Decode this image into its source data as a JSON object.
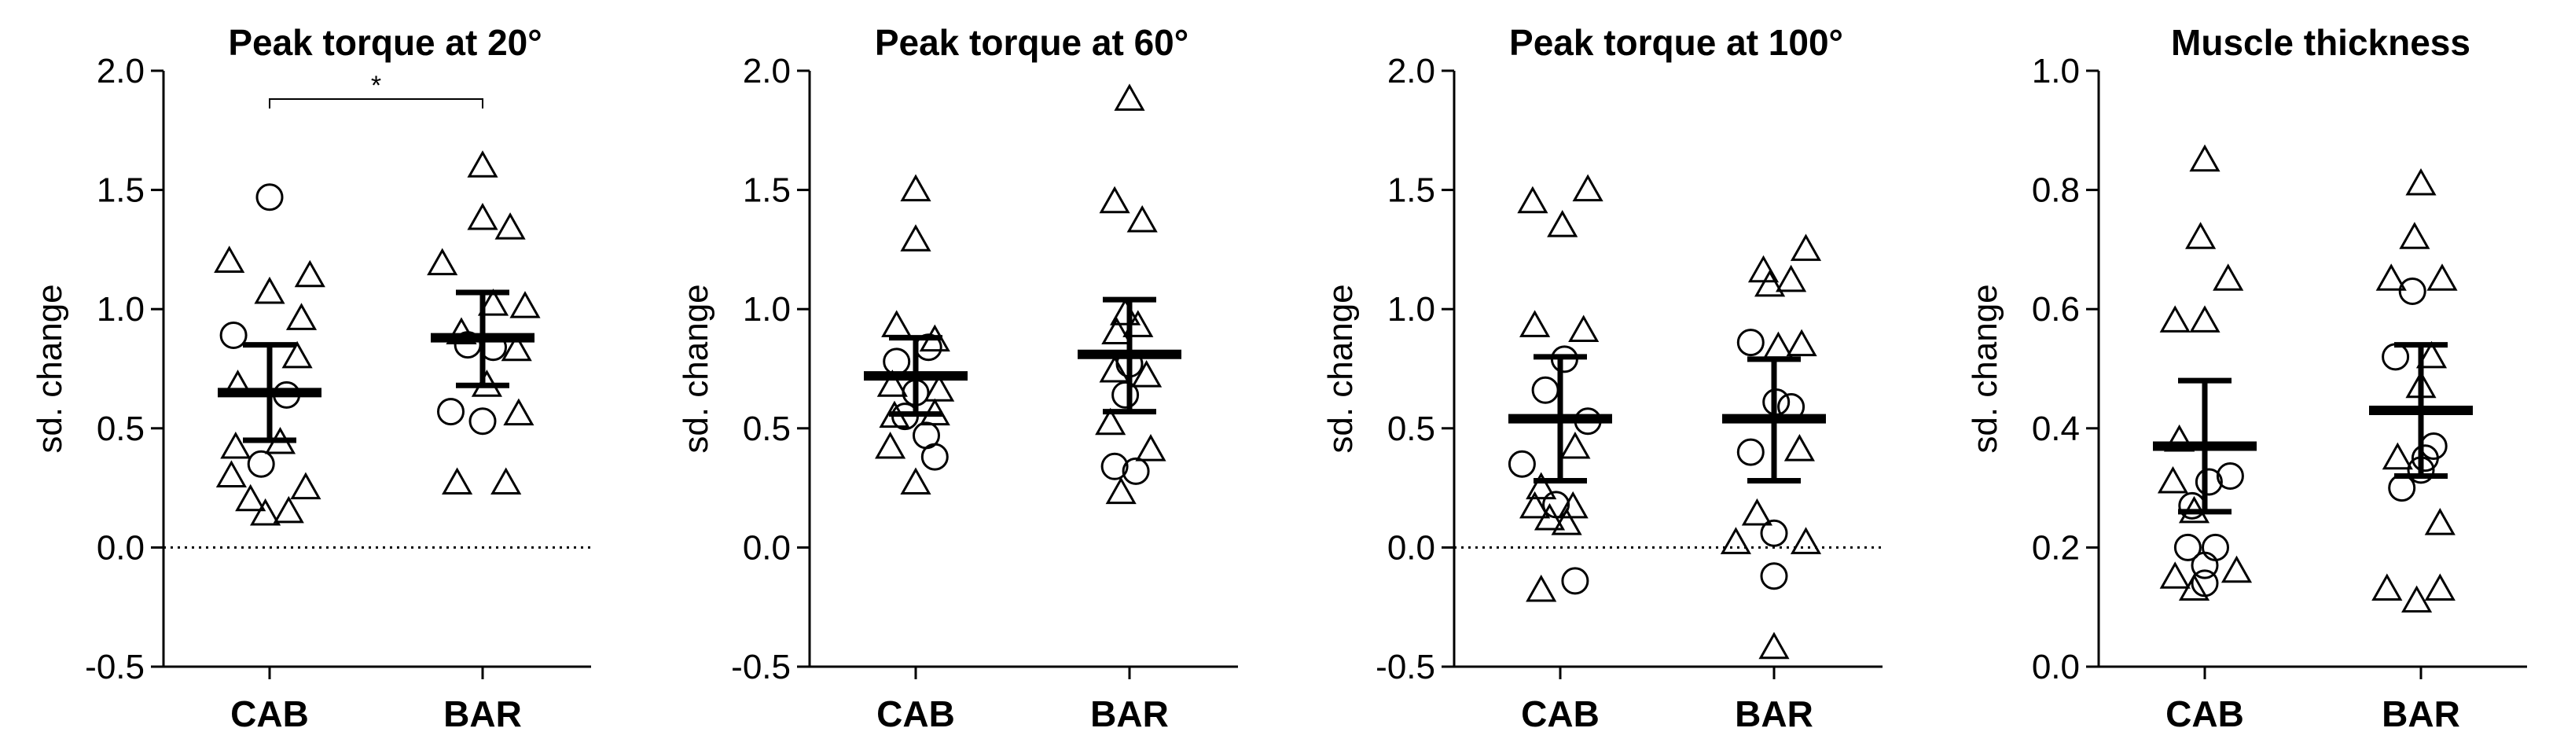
{
  "chart_data": [
    {
      "type": "scatter",
      "title": "Peak torque at 20°",
      "ylabel": "sd. change",
      "categories": [
        "CAB",
        "BAR"
      ],
      "ylim": [
        -0.5,
        2.0
      ],
      "yticks": [
        -0.5,
        0.0,
        0.5,
        1.0,
        1.5,
        2.0
      ],
      "tick_format": 1,
      "ref_line": 0,
      "significance": {
        "from": "CAB",
        "to": "BAR",
        "label": "*"
      },
      "groups": [
        {
          "category": "CAB",
          "mean": 0.65,
          "ci": [
            0.45,
            0.85
          ],
          "circles": [
            {
              "dx": -0.34,
              "y": 0.89
            },
            {
              "dx": 0.0,
              "y": 1.47
            },
            {
              "dx": 0.16,
              "y": 0.64
            },
            {
              "dx": -0.08,
              "y": 0.35
            }
          ],
          "triangles": [
            {
              "dx": -0.38,
              "y": 1.2
            },
            {
              "dx": 0.0,
              "y": 1.07
            },
            {
              "dx": 0.38,
              "y": 1.14
            },
            {
              "dx": 0.3,
              "y": 0.96
            },
            {
              "dx": -0.3,
              "y": 0.68
            },
            {
              "dx": 0.26,
              "y": 0.8
            },
            {
              "dx": -0.32,
              "y": 0.42
            },
            {
              "dx": 0.1,
              "y": 0.44
            },
            {
              "dx": -0.36,
              "y": 0.3
            },
            {
              "dx": -0.18,
              "y": 0.2
            },
            {
              "dx": 0.34,
              "y": 0.25
            },
            {
              "dx": -0.04,
              "y": 0.14
            },
            {
              "dx": 0.18,
              "y": 0.15
            }
          ]
        },
        {
          "category": "BAR",
          "mean": 0.88,
          "ci": [
            0.68,
            1.07
          ],
          "circles": [
            {
              "dx": -0.14,
              "y": 0.85
            },
            {
              "dx": 0.1,
              "y": 0.84
            },
            {
              "dx": -0.3,
              "y": 0.57
            },
            {
              "dx": 0.0,
              "y": 0.53
            }
          ],
          "triangles": [
            {
              "dx": 0.0,
              "y": 1.6
            },
            {
              "dx": 0.0,
              "y": 1.38
            },
            {
              "dx": 0.26,
              "y": 1.34
            },
            {
              "dx": -0.38,
              "y": 1.19
            },
            {
              "dx": 0.1,
              "y": 1.02
            },
            {
              "dx": 0.4,
              "y": 1.01
            },
            {
              "dx": -0.2,
              "y": 0.9
            },
            {
              "dx": 0.32,
              "y": 0.83
            },
            {
              "dx": 0.04,
              "y": 0.68
            },
            {
              "dx": 0.34,
              "y": 0.56
            },
            {
              "dx": -0.24,
              "y": 0.27
            },
            {
              "dx": 0.22,
              "y": 0.27
            }
          ]
        }
      ]
    },
    {
      "type": "scatter",
      "title": "Peak torque at 60°",
      "ylabel": "sd. change",
      "categories": [
        "CAB",
        "BAR"
      ],
      "ylim": [
        -0.5,
        2.0
      ],
      "yticks": [
        -0.5,
        0.0,
        0.5,
        1.0,
        1.5,
        2.0
      ],
      "tick_format": 1,
      "groups": [
        {
          "category": "CAB",
          "mean": 0.72,
          "ci": [
            0.56,
            0.88
          ],
          "circles": [
            {
              "dx": -0.18,
              "y": 0.78
            },
            {
              "dx": 0.0,
              "y": 0.65
            },
            {
              "dx": 0.12,
              "y": 0.84
            },
            {
              "dx": -0.1,
              "y": 0.55
            },
            {
              "dx": 0.1,
              "y": 0.47
            },
            {
              "dx": 0.18,
              "y": 0.38
            }
          ],
          "triangles": [
            {
              "dx": 0.0,
              "y": 1.5
            },
            {
              "dx": 0.0,
              "y": 1.29
            },
            {
              "dx": -0.18,
              "y": 0.93
            },
            {
              "dx": 0.18,
              "y": 0.87
            },
            {
              "dx": -0.22,
              "y": 0.68
            },
            {
              "dx": 0.22,
              "y": 0.66
            },
            {
              "dx": -0.2,
              "y": 0.55
            },
            {
              "dx": 0.18,
              "y": 0.56
            },
            {
              "dx": -0.24,
              "y": 0.42
            },
            {
              "dx": 0.0,
              "y": 0.27
            }
          ]
        },
        {
          "category": "BAR",
          "mean": 0.81,
          "ci": [
            0.57,
            1.04
          ],
          "circles": [
            {
              "dx": -0.04,
              "y": 0.64
            },
            {
              "dx": -0.14,
              "y": 0.34
            },
            {
              "dx": 0.06,
              "y": 0.32
            },
            {
              "dx": 0.0,
              "y": 0.77
            }
          ],
          "triangles": [
            {
              "dx": 0.0,
              "y": 1.88
            },
            {
              "dx": -0.14,
              "y": 1.45
            },
            {
              "dx": 0.12,
              "y": 1.37
            },
            {
              "dx": -0.04,
              "y": 0.98
            },
            {
              "dx": 0.08,
              "y": 0.93
            },
            {
              "dx": -0.12,
              "y": 0.9
            },
            {
              "dx": -0.14,
              "y": 0.74
            },
            {
              "dx": 0.16,
              "y": 0.72
            },
            {
              "dx": -0.18,
              "y": 0.52
            },
            {
              "dx": 0.2,
              "y": 0.41
            },
            {
              "dx": -0.08,
              "y": 0.23
            }
          ]
        }
      ]
    },
    {
      "type": "scatter",
      "title": "Peak torque at 100°",
      "ylabel": "sd. change",
      "categories": [
        "CAB",
        "BAR"
      ],
      "ylim": [
        -0.5,
        2.0
      ],
      "yticks": [
        -0.5,
        0.0,
        0.5,
        1.0,
        1.5,
        2.0
      ],
      "tick_format": 1,
      "ref_line": 0,
      "groups": [
        {
          "category": "CAB",
          "mean": 0.54,
          "ci": [
            0.28,
            0.8
          ],
          "circles": [
            {
              "dx": 0.04,
              "y": 0.79
            },
            {
              "dx": -0.14,
              "y": 0.66
            },
            {
              "dx": 0.26,
              "y": 0.53
            },
            {
              "dx": -0.36,
              "y": 0.35
            },
            {
              "dx": -0.04,
              "y": 0.18
            },
            {
              "dx": 0.14,
              "y": -0.14
            }
          ],
          "triangles": [
            {
              "dx": -0.26,
              "y": 1.45
            },
            {
              "dx": 0.26,
              "y": 1.5
            },
            {
              "dx": 0.02,
              "y": 1.35
            },
            {
              "dx": -0.24,
              "y": 0.93
            },
            {
              "dx": 0.22,
              "y": 0.91
            },
            {
              "dx": 0.14,
              "y": 0.42
            },
            {
              "dx": -0.18,
              "y": 0.25
            },
            {
              "dx": -0.24,
              "y": 0.17
            },
            {
              "dx": 0.12,
              "y": 0.17
            },
            {
              "dx": -0.1,
              "y": 0.12
            },
            {
              "dx": 0.06,
              "y": 0.1
            },
            {
              "dx": -0.18,
              "y": -0.18
            }
          ]
        },
        {
          "category": "BAR",
          "mean": 0.54,
          "ci": [
            0.28,
            0.79
          ],
          "circles": [
            {
              "dx": -0.22,
              "y": 0.86
            },
            {
              "dx": 0.02,
              "y": 0.61
            },
            {
              "dx": 0.16,
              "y": 0.59
            },
            {
              "dx": -0.22,
              "y": 0.4
            },
            {
              "dx": 0.0,
              "y": 0.06
            },
            {
              "dx": 0.0,
              "y": -0.12
            }
          ],
          "triangles": [
            {
              "dx": 0.3,
              "y": 1.25
            },
            {
              "dx": -0.1,
              "y": 1.16
            },
            {
              "dx": 0.16,
              "y": 1.12
            },
            {
              "dx": -0.04,
              "y": 1.1
            },
            {
              "dx": 0.26,
              "y": 0.85
            },
            {
              "dx": 0.04,
              "y": 0.84
            },
            {
              "dx": 0.24,
              "y": 0.41
            },
            {
              "dx": -0.16,
              "y": 0.14
            },
            {
              "dx": -0.36,
              "y": 0.02
            },
            {
              "dx": 0.3,
              "y": 0.02
            },
            {
              "dx": 0.0,
              "y": -0.42
            }
          ]
        }
      ]
    },
    {
      "type": "scatter",
      "title": "Muscle thickness",
      "ylabel": "sd. change",
      "categories": [
        "CAB",
        "BAR"
      ],
      "ylim": [
        0.0,
        1.0
      ],
      "yticks": [
        0.0,
        0.2,
        0.4,
        0.6,
        0.8,
        1.0
      ],
      "tick_format": 1,
      "groups": [
        {
          "category": "CAB",
          "mean": 0.37,
          "ci": [
            0.26,
            0.48
          ],
          "circles": [
            {
              "dx": -0.12,
              "y": 0.27
            },
            {
              "dx": 0.04,
              "y": 0.31
            },
            {
              "dx": 0.24,
              "y": 0.32
            },
            {
              "dx": 0.1,
              "y": 0.2
            },
            {
              "dx": -0.16,
              "y": 0.2
            },
            {
              "dx": 0.0,
              "y": 0.17
            },
            {
              "dx": 0.0,
              "y": 0.14
            }
          ],
          "triangles": [
            {
              "dx": 0.0,
              "y": 0.85
            },
            {
              "dx": -0.04,
              "y": 0.72
            },
            {
              "dx": 0.22,
              "y": 0.65
            },
            {
              "dx": -0.28,
              "y": 0.58
            },
            {
              "dx": 0.0,
              "y": 0.58
            },
            {
              "dx": -0.24,
              "y": 0.38
            },
            {
              "dx": -0.3,
              "y": 0.31
            },
            {
              "dx": -0.1,
              "y": 0.26
            },
            {
              "dx": -0.28,
              "y": 0.15
            },
            {
              "dx": 0.3,
              "y": 0.16
            },
            {
              "dx": -0.1,
              "y": 0.13
            }
          ]
        },
        {
          "category": "BAR",
          "mean": 0.43,
          "ci": [
            0.32,
            0.54
          ],
          "circles": [
            {
              "dx": -0.24,
              "y": 0.52
            },
            {
              "dx": -0.08,
              "y": 0.63
            },
            {
              "dx": 0.12,
              "y": 0.37
            },
            {
              "dx": 0.04,
              "y": 0.35
            },
            {
              "dx": 0.0,
              "y": 0.33
            },
            {
              "dx": -0.18,
              "y": 0.3
            }
          ],
          "triangles": [
            {
              "dx": 0.0,
              "y": 0.81
            },
            {
              "dx": -0.06,
              "y": 0.72
            },
            {
              "dx": -0.28,
              "y": 0.65
            },
            {
              "dx": 0.2,
              "y": 0.65
            },
            {
              "dx": 0.1,
              "y": 0.52
            },
            {
              "dx": 0.0,
              "y": 0.47
            },
            {
              "dx": -0.22,
              "y": 0.35
            },
            {
              "dx": 0.18,
              "y": 0.24
            },
            {
              "dx": -0.32,
              "y": 0.13
            },
            {
              "dx": 0.18,
              "y": 0.13
            },
            {
              "dx": -0.04,
              "y": 0.11
            }
          ]
        }
      ]
    }
  ]
}
